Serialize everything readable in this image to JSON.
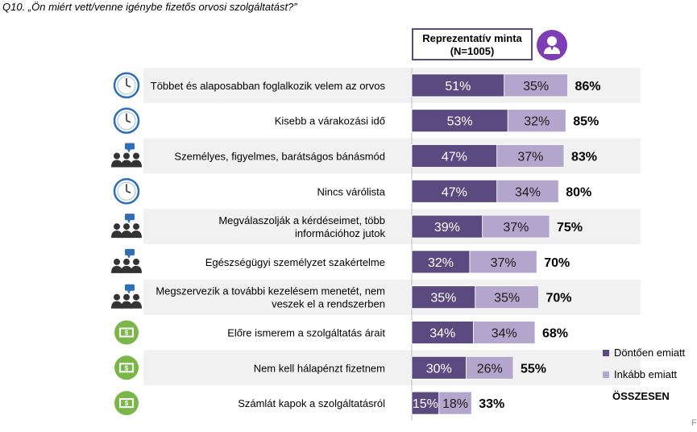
{
  "question": "Q10. „Ön miért vett/venne igénybe fizetős orvosi szolgáltatást?”",
  "sample": {
    "line1": "Reprezentatív minta",
    "line2": "(N=1005)",
    "icon": "person-icon"
  },
  "legend": {
    "series1": "Döntően emiatt",
    "series2": "Inkább emiatt",
    "total": "ÖSSZESEN"
  },
  "footer_mark": "F",
  "colors": {
    "series1": "#5b4a80",
    "series2": "#b3a6cd",
    "stripe": "#f1f1f1",
    "icon_blue": "#2f6fb7",
    "icon_green": "#7ab648"
  },
  "chart_data": {
    "type": "bar",
    "orientation": "horizontal",
    "stacked": true,
    "categories": [
      "Többet és alaposabban foglalkozik velem az orvos",
      "Kisebb a várakozási idő",
      "Személyes, figyelmes, barátságos bánásmód",
      "Nincs várólista",
      "Megválaszolják a kérdéseimet, több információhoz jutok",
      "Egészségügyi személyzet szakértelme",
      "Megszervezik a további kezelésem menetét, nem veszek el a rendszerben",
      "Előre ismerem a szolgáltatás árait",
      "Nem kell hálapénzt fizetnem",
      "Számlát kapok a szolgáltatásról"
    ],
    "category_lines": [
      [
        "Többet és alaposabban foglalkozik velem az orvos"
      ],
      [
        "Kisebb a várakozási idő"
      ],
      [
        "Személyes, figyelmes, barátságos bánásmód"
      ],
      [
        "Nincs várólista"
      ],
      [
        "Megválaszolják a kérdéseimet, több",
        "információhoz jutok"
      ],
      [
        "Egészségügyi személyzet szakértelme"
      ],
      [
        "Megszervezik a további kezelésem menetét, nem",
        "veszek el a rendszerben"
      ],
      [
        "Előre ismerem a szolgáltatás árait"
      ],
      [
        "Nem kell hálapénzt fizetnem"
      ],
      [
        "Számlát kapok a szolgáltatásról"
      ]
    ],
    "icons": [
      "clock-icon",
      "clock-icon",
      "people-chat-icon",
      "clock-icon",
      "people-chat-icon",
      "people-chat-icon",
      "people-chat-icon",
      "money-icon",
      "money-icon",
      "money-icon"
    ],
    "series": [
      {
        "name": "Döntően emiatt",
        "values": [
          51,
          53,
          47,
          47,
          39,
          32,
          35,
          34,
          30,
          15
        ]
      },
      {
        "name": "Inkább emiatt",
        "values": [
          35,
          32,
          37,
          34,
          37,
          37,
          35,
          34,
          26,
          18
        ]
      }
    ],
    "totals": [
      86,
      85,
      83,
      80,
      75,
      70,
      70,
      68,
      55,
      33
    ],
    "value_suffix": "%",
    "xlim": [
      0,
      100
    ]
  }
}
